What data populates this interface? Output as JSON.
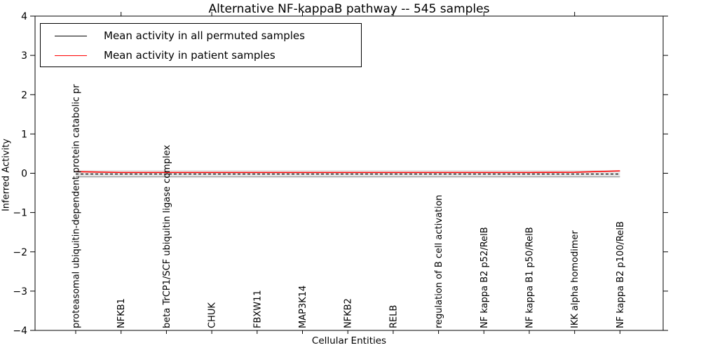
{
  "title": "Alternative NF-kappaB pathway -- 545 samples",
  "legend": {
    "entries": [
      {
        "label": "Mean activity in all permuted samples",
        "color": "#000000"
      },
      {
        "label": "Mean activity in patient samples",
        "color": "#ff0000"
      }
    ]
  },
  "chart_data": {
    "type": "line",
    "title": "Alternative NF-kappaB pathway -- 545 samples",
    "xlabel": "Cellular Entities",
    "ylabel": "Inferred Activity",
    "ylim": [
      -4,
      4
    ],
    "ytick_values": [
      4,
      3,
      2,
      1,
      0,
      -1,
      -2,
      -3,
      -4
    ],
    "ytick_labels": [
      "4",
      "3",
      "2",
      "1",
      "0",
      "−1",
      "−2",
      "−3",
      "−4"
    ],
    "grid": false,
    "legend_position": "upper left",
    "categories": [
      "proteasomal ubiquitin-dependent protein catabolic pr",
      "NFKB1",
      "beta TrCP1/SCF ubiquitin ligase complex",
      "CHUK",
      "FBXW11",
      "MAP3K14",
      "NFKB2",
      "RELB",
      "regulation of B cell activation",
      "NF kappa B2 p52/RelB",
      "NF kappa B1 p50/RelB",
      "IKK alpha homodimer",
      "NF kappa B2 p100/RelB"
    ],
    "series": [
      {
        "name": "Mean activity in all permuted samples",
        "color": "#000000",
        "line_style": "dashed",
        "values": [
          -0.02,
          -0.02,
          -0.02,
          -0.02,
          -0.02,
          -0.02,
          -0.02,
          -0.02,
          -0.02,
          -0.02,
          -0.02,
          -0.02,
          -0.02
        ]
      },
      {
        "name": "Mean activity in patient samples",
        "color": "#ff0000",
        "line_style": "solid",
        "values": [
          0.04,
          0.02,
          0.02,
          0.02,
          0.02,
          0.02,
          0.02,
          0.02,
          0.02,
          0.02,
          0.02,
          0.025,
          0.06
        ]
      }
    ],
    "band": {
      "description": "std-dev band around permuted mean",
      "upper": 0.08,
      "lower": -0.12,
      "inner_edge": -0.09,
      "color": "#e5e5e5",
      "edge_color": "#999999"
    }
  }
}
